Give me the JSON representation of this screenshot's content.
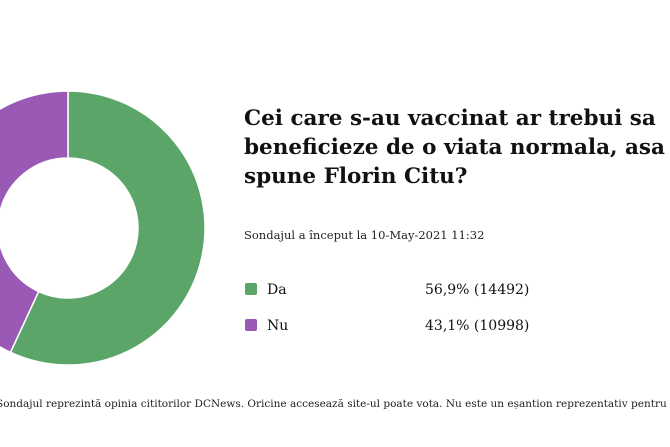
{
  "poll": {
    "question": "Cei care s-au vaccinat ar trebui sa\nbeneficieze de o viata normala, asa cum\nspune Florin Citu?",
    "started": "Sondajul a început la 10-May-2021 11:32",
    "footnote": "Sondajul reprezintă opinia cititorilor DCNews. Oricine accesează site-ul poate vota. Nu este un eșantion reprezentativ pentru populația generală."
  },
  "chart_data": {
    "type": "pie",
    "style": "donut",
    "categories": [
      "Da",
      "Nu"
    ],
    "values": [
      56.9,
      43.1
    ],
    "counts": [
      14492,
      10998
    ],
    "value_labels": [
      "56,9% (14492)",
      "43,1% (10998)"
    ],
    "colors": [
      "#5aa567",
      "#9a59b5"
    ],
    "legend": "right"
  }
}
